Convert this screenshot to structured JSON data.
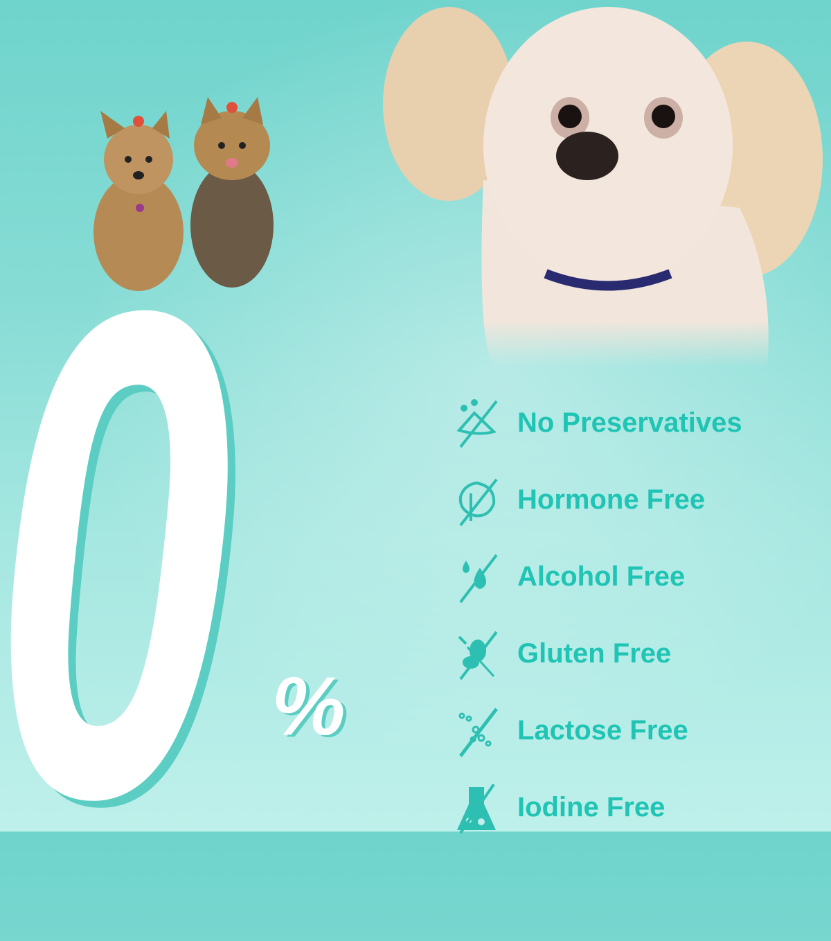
{
  "hero": {
    "number": "0",
    "symbol": "%"
  },
  "accent_color": "#1fc4b4",
  "features": [
    {
      "label": "No Preservatives",
      "icon": "no-preservatives-icon"
    },
    {
      "label": "Hormone Free",
      "icon": "no-hormone-leaf-icon"
    },
    {
      "label": "Alcohol Free",
      "icon": "no-alcohol-drop-icon"
    },
    {
      "label": "Gluten Free",
      "icon": "no-gluten-wheat-icon"
    },
    {
      "label": "Lactose Free",
      "icon": "no-lactose-bubbles-icon"
    },
    {
      "label": "Iodine Free",
      "icon": "no-iodine-flask-icon"
    }
  ]
}
